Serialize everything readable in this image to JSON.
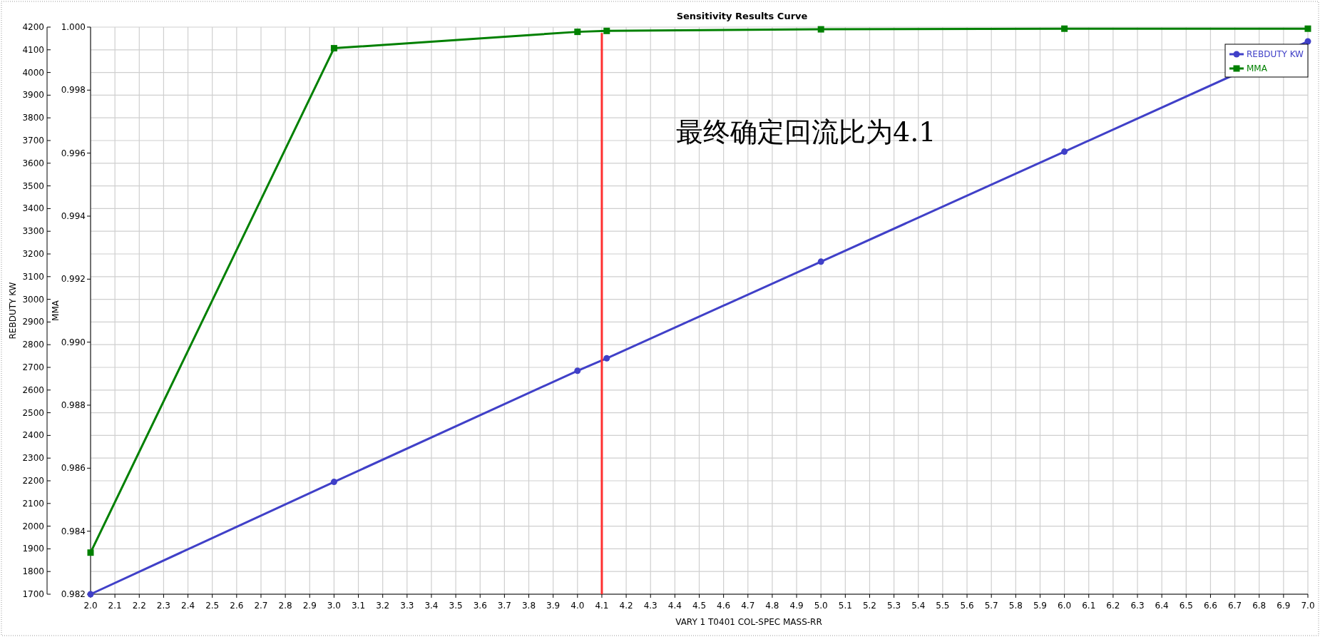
{
  "chart_data": {
    "type": "line",
    "title": "Sensitivity Results Curve",
    "xlabel": "VARY   1 T0401 COL-SPEC MASS-RR",
    "ylabel": "REBDUTY KW",
    "y2label": "MMA",
    "series": [
      {
        "name": "REBDUTY KW",
        "color": "#4040c8",
        "marker": "circle",
        "x": [
          2.0,
          3.0,
          4.0,
          4.12,
          5.0,
          6.0,
          7.0
        ],
        "values": [
          1700,
          2195,
          2685,
          2740,
          3166,
          3651,
          4137
        ]
      },
      {
        "name": "MMA",
        "color": "#008000",
        "marker": "square",
        "axis": "y2",
        "x": [
          2.0,
          3.0,
          4.0,
          4.12,
          5.0,
          6.0,
          7.0
        ],
        "values": [
          0.98332,
          0.99933,
          0.99985,
          0.99988,
          0.99993,
          0.99995,
          0.99995
        ]
      }
    ],
    "xlim": [
      2.0,
      7.0
    ],
    "xticks": [
      {
        "value": 2.0,
        "label": "2.0"
      },
      {
        "value": 2.1,
        "label": "2.1"
      },
      {
        "value": 2.2,
        "label": "2.2"
      },
      {
        "value": 2.3,
        "label": "2.3"
      },
      {
        "value": 2.4,
        "label": "2.4"
      },
      {
        "value": 2.5,
        "label": "2.5"
      },
      {
        "value": 2.6,
        "label": "2.6"
      },
      {
        "value": 2.7,
        "label": "2.7"
      },
      {
        "value": 2.8,
        "label": "2.8"
      },
      {
        "value": 2.9,
        "label": "2.9"
      },
      {
        "value": 3.0,
        "label": "3.0"
      },
      {
        "value": 3.1,
        "label": "3.1"
      },
      {
        "value": 3.2,
        "label": "3.2"
      },
      {
        "value": 3.3,
        "label": "3.3"
      },
      {
        "value": 3.4,
        "label": "3.4"
      },
      {
        "value": 3.5,
        "label": "3.5"
      },
      {
        "value": 3.6,
        "label": "3.6"
      },
      {
        "value": 3.7,
        "label": "3.7"
      },
      {
        "value": 3.8,
        "label": "3.8"
      },
      {
        "value": 3.9,
        "label": "3.9"
      },
      {
        "value": 4.0,
        "label": "4.0"
      },
      {
        "value": 4.1,
        "label": "4.1"
      },
      {
        "value": 4.2,
        "label": "4.2"
      },
      {
        "value": 4.3,
        "label": "4.3"
      },
      {
        "value": 4.4,
        "label": "4.4"
      },
      {
        "value": 4.5,
        "label": "4.5"
      },
      {
        "value": 4.6,
        "label": "4.6"
      },
      {
        "value": 4.7,
        "label": "4.7"
      },
      {
        "value": 4.8,
        "label": "4.8"
      },
      {
        "value": 4.9,
        "label": "4.9"
      },
      {
        "value": 5.0,
        "label": "5.0"
      },
      {
        "value": 5.1,
        "label": "5.1"
      },
      {
        "value": 5.2,
        "label": "5.2"
      },
      {
        "value": 5.3,
        "label": "5.3"
      },
      {
        "value": 5.4,
        "label": "5.4"
      },
      {
        "value": 5.5,
        "label": "5.5"
      },
      {
        "value": 5.6,
        "label": "5.6"
      },
      {
        "value": 5.7,
        "label": "5.7"
      },
      {
        "value": 5.8,
        "label": "5.8"
      },
      {
        "value": 5.9,
        "label": "5.9"
      },
      {
        "value": 6.0,
        "label": "6.0"
      },
      {
        "value": 6.1,
        "label": "6.1"
      },
      {
        "value": 6.2,
        "label": "6.2"
      },
      {
        "value": 6.3,
        "label": "6.3"
      },
      {
        "value": 6.4,
        "label": "6.4"
      },
      {
        "value": 6.5,
        "label": "6.5"
      },
      {
        "value": 6.6,
        "label": "6.6"
      },
      {
        "value": 6.7,
        "label": "6.7"
      },
      {
        "value": 6.8,
        "label": "6.8"
      },
      {
        "value": 6.9,
        "label": "6.9"
      },
      {
        "value": 7.0,
        "label": "7.0"
      }
    ],
    "ylim": [
      1700,
      4200
    ],
    "yticks": [
      1700,
      1800,
      1900,
      2000,
      2100,
      2200,
      2300,
      2400,
      2500,
      2600,
      2700,
      2800,
      2900,
      3000,
      3100,
      3200,
      3300,
      3400,
      3500,
      3600,
      3700,
      3800,
      3900,
      4000,
      4100,
      4200
    ],
    "y2lim": [
      0.982,
      1.0
    ],
    "y2ticks": [
      0.982,
      0.984,
      0.986,
      0.988,
      {
        "value": 0.99,
        "label": "0.990"
      },
      0.992,
      0.994,
      0.996,
      0.998,
      {
        "value": 1.0,
        "label": "1.000"
      }
    ],
    "ref_lines": [
      {
        "axis": "x",
        "value": 4.1,
        "color": "#ff3030"
      }
    ],
    "annotations": [
      "最终确定回流比为4.1"
    ],
    "grid": true,
    "legend": "top right"
  }
}
